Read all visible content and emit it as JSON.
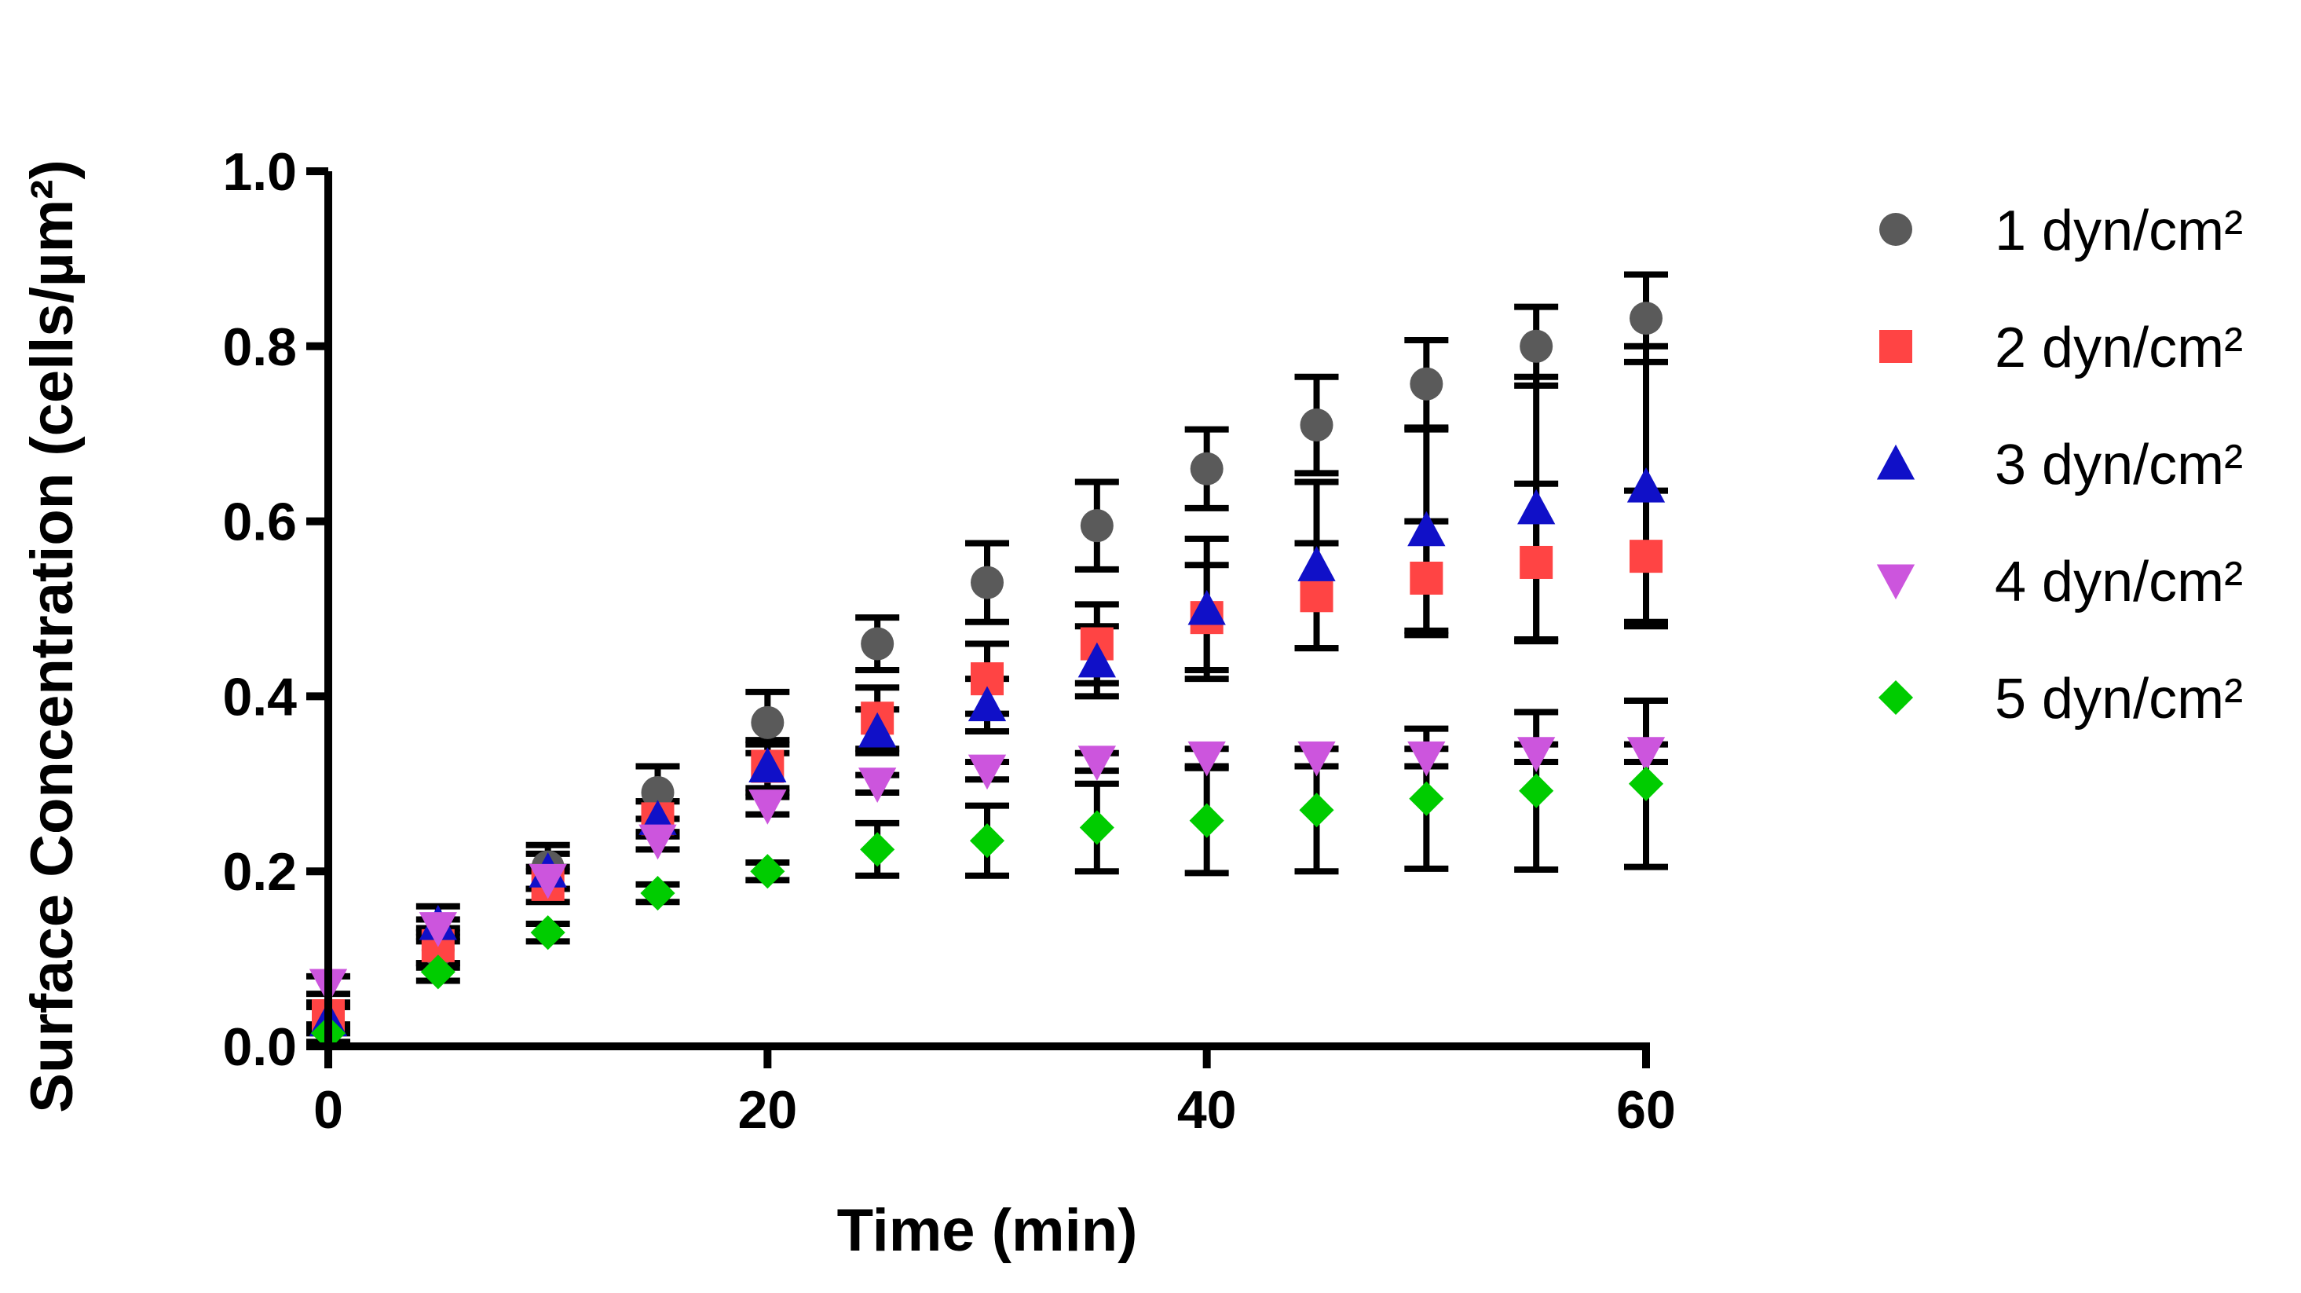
{
  "chart_data": {
    "type": "scatter",
    "title": "",
    "xlabel": "Time (min)",
    "ylabel": "Surface Concentration (cells/µm²)",
    "xlim": [
      0,
      60
    ],
    "ylim": [
      0.0,
      1.0
    ],
    "x_ticks": [
      0,
      20,
      40,
      60
    ],
    "y_ticks": [
      0.0,
      0.2,
      0.4,
      0.6,
      0.8,
      1.0
    ],
    "x_tick_labels": [
      "0",
      "20",
      "40",
      "60"
    ],
    "y_tick_labels": [
      "0.0",
      "0.2",
      "0.4",
      "0.6",
      "0.8",
      "1.0"
    ],
    "grid": false,
    "legend_position": "right",
    "x": [
      0,
      5,
      10,
      15,
      20,
      25,
      30,
      35,
      40,
      45,
      50,
      55,
      60
    ],
    "series": [
      {
        "name": "1 dyn/cm²",
        "marker": "circle",
        "color": "#5a5a5a",
        "values": [
          0.03,
          0.11,
          0.205,
          0.29,
          0.37,
          0.46,
          0.53,
          0.595,
          0.66,
          0.71,
          0.757,
          0.8,
          0.832
        ],
        "errors": [
          0.015,
          0.02,
          0.025,
          0.03,
          0.035,
          0.03,
          0.045,
          0.05,
          0.045,
          0.055,
          0.05,
          0.045,
          0.05
        ]
      },
      {
        "name": "2 dyn/cm²",
        "marker": "square",
        "color": "#ff4444",
        "values": [
          0.035,
          0.115,
          0.185,
          0.26,
          0.32,
          0.375,
          0.42,
          0.46,
          0.49,
          0.515,
          0.535,
          0.553,
          0.56
        ],
        "errors": [
          0.015,
          0.02,
          0.02,
          0.02,
          0.03,
          0.035,
          0.04,
          0.045,
          0.06,
          0.06,
          0.065,
          0.09,
          0.075
        ]
      },
      {
        "name": "3 dyn/cm²",
        "marker": "triangle-up",
        "color": "#1010c8",
        "values": [
          0.03,
          0.14,
          0.2,
          0.26,
          0.32,
          0.36,
          0.39,
          0.44,
          0.5,
          0.55,
          0.59,
          0.615,
          0.64
        ],
        "errors": [
          0.015,
          0.02,
          0.02,
          0.02,
          0.025,
          0.025,
          0.03,
          0.04,
          0.08,
          0.095,
          0.115,
          0.15,
          0.16
        ]
      },
      {
        "name": "4 dyn/cm²",
        "marker": "triangle-down",
        "color": "#cc55dd",
        "values": [
          0.07,
          0.135,
          0.19,
          0.235,
          0.275,
          0.3,
          0.315,
          0.325,
          0.33,
          0.33,
          0.33,
          0.335,
          0.335
        ],
        "errors": [
          0.01,
          0.01,
          0.01,
          0.01,
          0.01,
          0.01,
          0.01,
          0.01,
          0.01,
          0.01,
          0.01,
          0.01,
          0.01
        ]
      },
      {
        "name": "5 dyn/cm²",
        "marker": "diamond",
        "color": "#00cc00",
        "values": [
          0.015,
          0.085,
          0.13,
          0.175,
          0.2,
          0.225,
          0.235,
          0.25,
          0.258,
          0.27,
          0.283,
          0.292,
          0.3
        ],
        "errors": [
          0.01,
          0.01,
          0.01,
          0.01,
          0.01,
          0.03,
          0.04,
          0.05,
          0.06,
          0.07,
          0.08,
          0.09,
          0.095
        ]
      }
    ]
  }
}
